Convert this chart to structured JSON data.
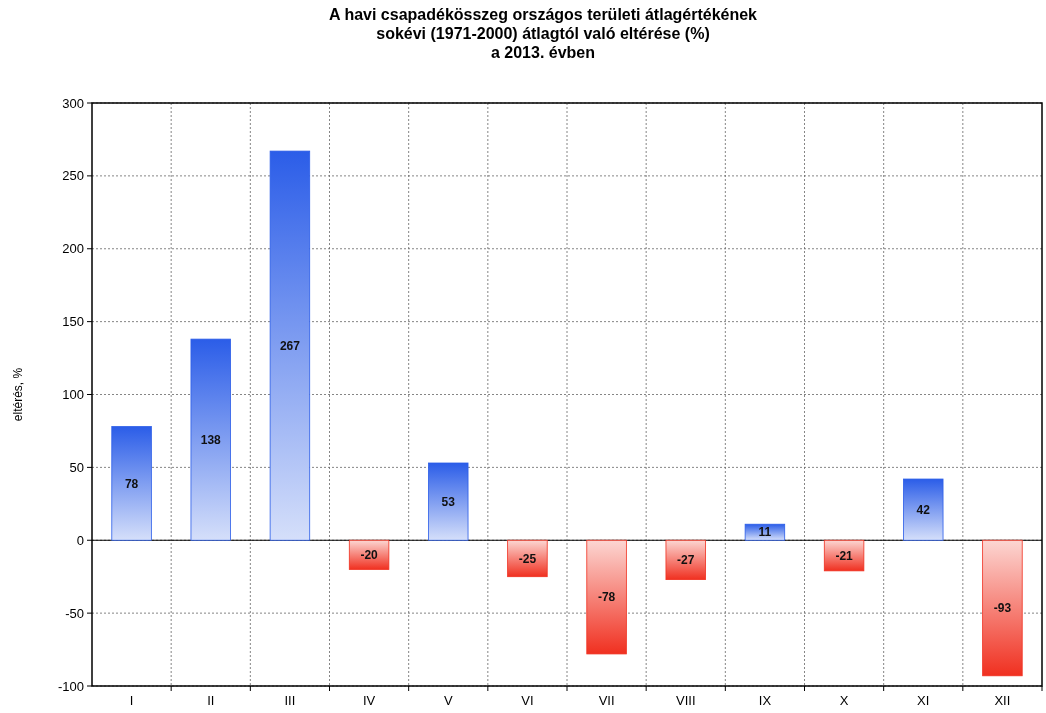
{
  "chart_data": {
    "type": "bar",
    "title": "A havi csapadékösszeg országos területi átlagértékének\nsokévi (1971-2000) átlagtól való eltérése (%)\na 2013. évben",
    "ylabel": "eltérés, %",
    "categories": [
      "I",
      "II",
      "III",
      "IV",
      "V",
      "VI",
      "VII",
      "VIII",
      "IX",
      "X",
      "XI",
      "XII"
    ],
    "values": [
      78,
      138,
      267,
      -20,
      53,
      -25,
      -78,
      -27,
      11,
      -21,
      42,
      -93
    ],
    "colors": [
      "#2b5de8",
      "#2b5de8",
      "#2b5de8",
      "#f03020",
      "#2b5de8",
      "#f03020",
      "#f03020",
      "#f03020",
      "#2b5de8",
      "#f03020",
      "#2b5de8",
      "#f03020"
    ],
    "ylim": [
      -100,
      300
    ],
    "yticks": [
      -100,
      -50,
      0,
      50,
      100,
      150,
      200,
      250,
      300
    ],
    "grid": true,
    "data_labels": true
  }
}
